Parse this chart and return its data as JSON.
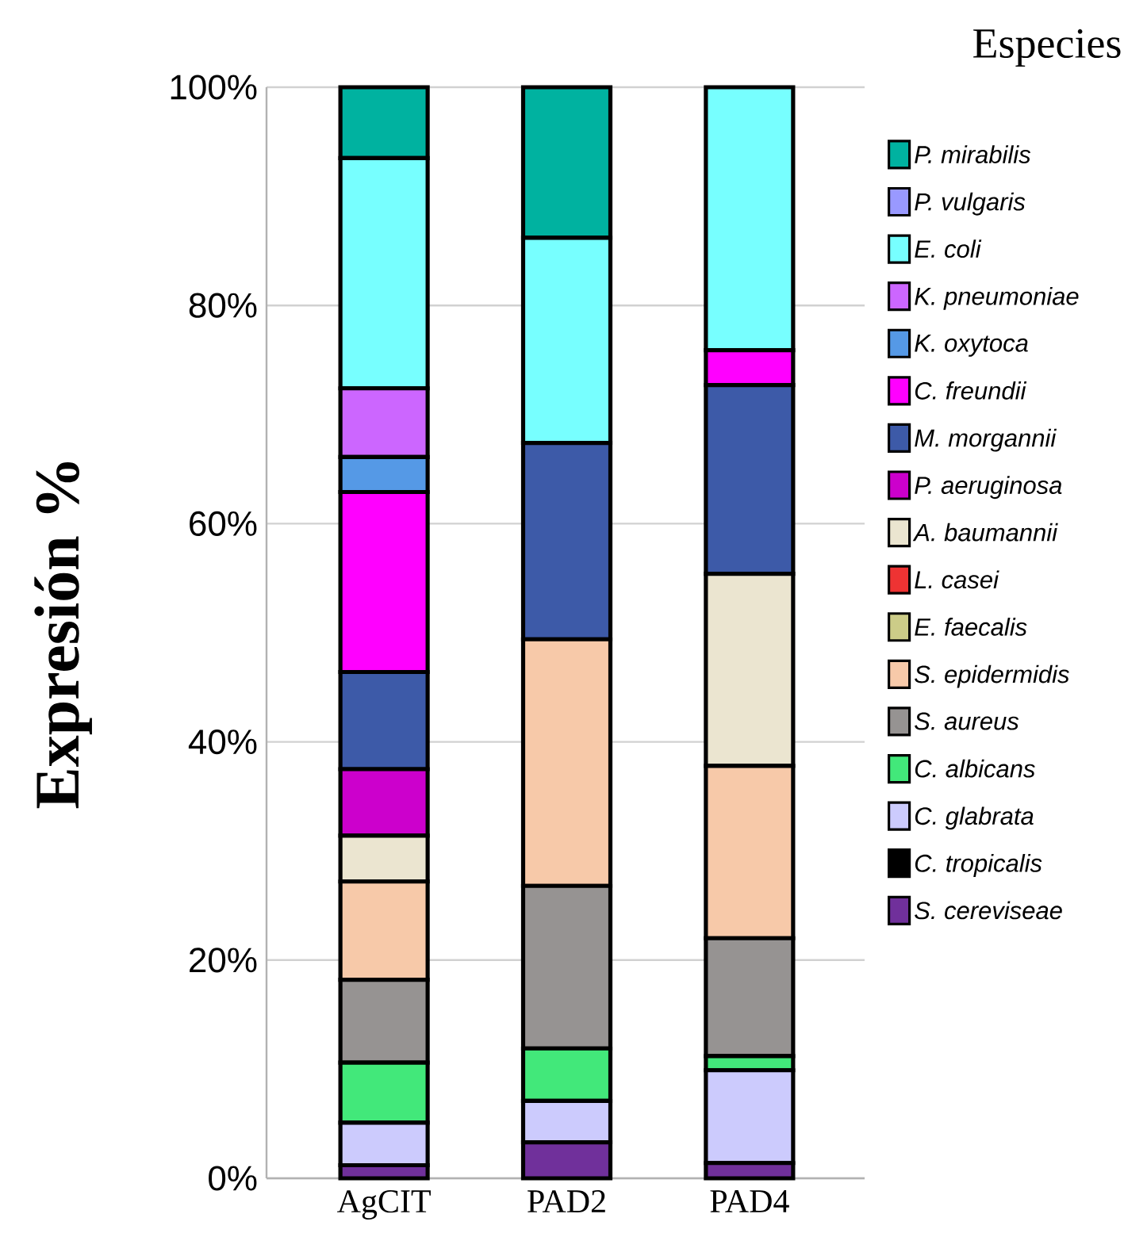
{
  "chart_data": {
    "type": "bar",
    "stacked": true,
    "ylabel": "Expresión %",
    "legend_title": "Especies",
    "legend": "right",
    "grid": "y",
    "categories": [
      "AgCIT",
      "PAD2",
      "PAD4"
    ],
    "ylim": [
      0,
      100
    ],
    "yticks": [
      {
        "value": 0,
        "label": "0%"
      },
      {
        "value": 20,
        "label": "20%"
      },
      {
        "value": 40,
        "label": "40%"
      },
      {
        "value": 60,
        "label": "60%"
      },
      {
        "value": 80,
        "label": "80%"
      },
      {
        "value": 100,
        "label": "100%"
      }
    ],
    "series": [
      {
        "name": "S. cereviseae",
        "color": "#70309b",
        "values": [
          1.2,
          3.3,
          1.4
        ]
      },
      {
        "name": "C. tropicalis",
        "color": "#000000",
        "values": [
          0,
          0,
          0
        ]
      },
      {
        "name": "C. glabrata",
        "color": "#cccbfd",
        "values": [
          3.9,
          3.8,
          8.5
        ]
      },
      {
        "name": "C. albicans",
        "color": "#42e87a",
        "values": [
          5.5,
          4.8,
          1.3
        ]
      },
      {
        "name": "S. aureus",
        "color": "#969392",
        "values": [
          7.6,
          14.9,
          10.8
        ]
      },
      {
        "name": "S. epidermidis",
        "color": "#f7c9a9",
        "values": [
          9.0,
          22.6,
          15.8
        ]
      },
      {
        "name": "E. faecalis",
        "color": "#cccc88",
        "values": [
          0,
          0,
          0
        ]
      },
      {
        "name": "L. casei",
        "color": "#ee3333",
        "values": [
          0,
          0,
          0
        ]
      },
      {
        "name": "A. baumannii",
        "color": "#ebe5d0",
        "values": [
          4.2,
          0,
          17.6
        ]
      },
      {
        "name": "P. aeruginosa",
        "color": "#cc00cc",
        "values": [
          6.1,
          0,
          0
        ]
      },
      {
        "name": "M. morgannii",
        "color": "#3d5aa8",
        "values": [
          8.9,
          18.0,
          17.3
        ]
      },
      {
        "name": "C. freundii",
        "color": "#ff00ff",
        "values": [
          16.5,
          0,
          3.2
        ]
      },
      {
        "name": "K. oxytoca",
        "color": "#5599e6",
        "values": [
          3.2,
          0,
          0
        ]
      },
      {
        "name": "K. pneumoniae",
        "color": "#cc66ff",
        "values": [
          6.3,
          0,
          0
        ]
      },
      {
        "name": "E. coli",
        "color": "#77ffff",
        "values": [
          21.1,
          18.8,
          24.1
        ]
      },
      {
        "name": "P. vulgaris",
        "color": "#9999ff",
        "values": [
          0,
          0,
          0
        ]
      },
      {
        "name": "P. mirabilis",
        "color": "#00b2a0",
        "values": [
          6.5,
          13.8,
          0
        ]
      }
    ]
  }
}
